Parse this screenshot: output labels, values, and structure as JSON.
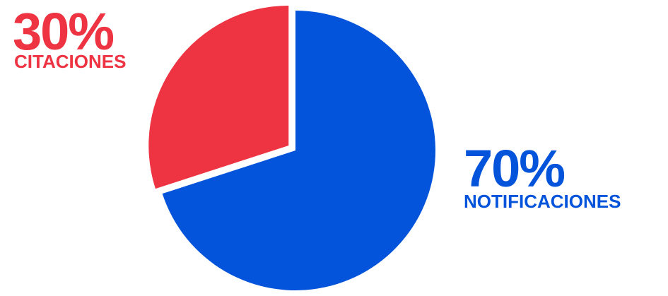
{
  "chart_data": {
    "type": "pie",
    "title": "",
    "slices": [
      {
        "label": "CITACIONES",
        "value": 30,
        "display": "30%",
        "color": "#ee3342",
        "exploded": true
      },
      {
        "label": "NOTIFICACIONES",
        "value": 70,
        "display": "70%",
        "color": "#0353db",
        "exploded": false
      }
    ],
    "start_angle_deg": 0,
    "direction": "counterclockwise",
    "legend": "none"
  },
  "colors": {
    "background": "#ffffff",
    "citaciones": "#ee3342",
    "notificaciones": "#0353db"
  }
}
